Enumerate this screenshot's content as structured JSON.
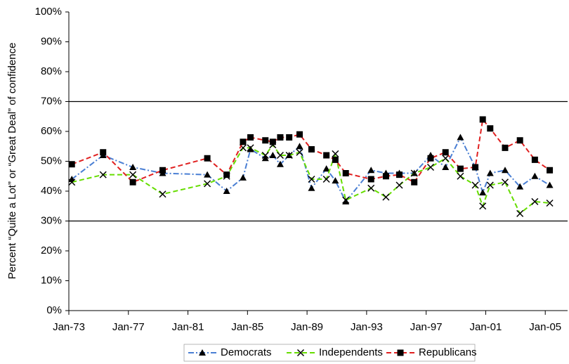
{
  "chart_data": {
    "type": "line",
    "y_label": "Percent “Quite a Lot” or “Great Deal” of confidence",
    "x": [
      1973.2,
      1975.3,
      1977.3,
      1979.3,
      1982.3,
      1983.6,
      1984.7,
      1985.2,
      1986.2,
      1986.7,
      1987.2,
      1987.8,
      1988.5,
      1989.3,
      1990.3,
      1990.9,
      1991.6,
      1993.3,
      1994.3,
      1995.2,
      1996.2,
      1997.3,
      1998.3,
      1999.3,
      2000.3,
      2000.8,
      2001.3,
      2002.3,
      2003.3,
      2004.3,
      2005.3
    ],
    "series": [
      {
        "name": "Democrats",
        "color": "#4a7fd4",
        "marker": "triangle",
        "dash": "8 3 2 3",
        "values": [
          44,
          52,
          48,
          46,
          45.5,
          40,
          44.5,
          54,
          51,
          52,
          49,
          52,
          55,
          41,
          47.5,
          43.5,
          36.5,
          47,
          46,
          46,
          46,
          52,
          48,
          58,
          48,
          39.5,
          46,
          47,
          41.5,
          45,
          42
        ]
      },
      {
        "name": "Independents",
        "color": "#66dd00",
        "marker": "cross",
        "dash": "7 4",
        "values": [
          43,
          45.5,
          45.5,
          39,
          42.5,
          45,
          54.5,
          54.5,
          52,
          55.5,
          52,
          52,
          53,
          44,
          44,
          52.5,
          37,
          41,
          38,
          42,
          46,
          48,
          51,
          45,
          42,
          35,
          42,
          43,
          32.5,
          36.5,
          36
        ]
      },
      {
        "name": "Republicans",
        "color": "#e02020",
        "marker": "square",
        "dash": "7 4",
        "values": [
          49,
          53,
          43,
          47,
          51,
          45.5,
          56.5,
          58,
          57,
          56.5,
          58,
          58,
          59,
          54,
          52,
          50.5,
          46,
          44,
          45,
          45.5,
          43,
          51,
          53,
          47.5,
          48,
          64,
          61,
          54.5,
          57,
          50.5,
          47
        ]
      }
    ],
    "xlim": [
      1973,
      2006.5
    ],
    "xticks": [
      {
        "value": 1973,
        "label": "Jan-73"
      },
      {
        "value": 1977,
        "label": "Jan-77"
      },
      {
        "value": 1981,
        "label": "Jan-81"
      },
      {
        "value": 1985,
        "label": "Jan-85"
      },
      {
        "value": 1989,
        "label": "Jan-89"
      },
      {
        "value": 1993,
        "label": "Jan-93"
      },
      {
        "value": 1997,
        "label": "Jan-97"
      },
      {
        "value": 2001,
        "label": "Jan-01"
      },
      {
        "value": 2005,
        "label": "Jan-05"
      }
    ],
    "ylim": [
      0,
      100
    ],
    "yticks": [
      {
        "value": 0,
        "label": "0%"
      },
      {
        "value": 10,
        "label": "10%"
      },
      {
        "value": 20,
        "label": "20%"
      },
      {
        "value": 30,
        "label": "30%"
      },
      {
        "value": 40,
        "label": "40%"
      },
      {
        "value": 50,
        "label": "50%"
      },
      {
        "value": 60,
        "label": "60%"
      },
      {
        "value": 70,
        "label": "70%"
      },
      {
        "value": 80,
        "label": "80%"
      },
      {
        "value": 90,
        "label": "90%"
      },
      {
        "value": 100,
        "label": "100%"
      }
    ],
    "hlines": [
      30,
      70
    ],
    "marker_color": "#000000"
  }
}
